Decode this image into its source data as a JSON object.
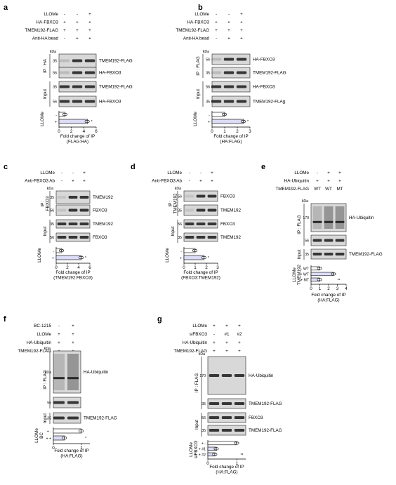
{
  "colors": {
    "bar_control": "#ffffff",
    "bar_llome": "#dcdcf7",
    "blot_bg": "#d8d8d8",
    "band": "#1a1a1a"
  },
  "panels": [
    {
      "letter": "a",
      "conds": [
        [
          "LLOMe",
          "-",
          "-",
          "+"
        ],
        [
          "HA-FBXO3",
          "+",
          "+",
          "+"
        ],
        [
          "TMEM192-FLAG",
          "+",
          "+",
          "+"
        ],
        [
          "Anti-HA bead",
          "-",
          "+",
          "+"
        ]
      ],
      "sections": [
        [
          "IP : HA"
        ],
        [
          "Input"
        ]
      ],
      "blots": [
        [
          "35",
          "TMEM192-FLAG"
        ],
        [
          "56",
          "HA-FBXO3"
        ],
        [
          "35",
          "TMEM192-FLAG"
        ],
        [
          "56",
          "HA-FBXO3"
        ]
      ],
      "kda": "kDa",
      "chart_title": "LLOMe",
      "chart_rows": [
        "-",
        "+"
      ],
      "ticks": [
        "0",
        "2",
        "4",
        "6"
      ],
      "sig": "*",
      "xlabel": [
        "Fold change of IP",
        "(FLAG:HA)"
      ]
    },
    {
      "letter": "b",
      "conds": [
        [
          "LLOMe",
          "-",
          "-",
          "+"
        ],
        [
          "HA-FBXO3",
          "+",
          "+",
          "+"
        ],
        [
          "TMEM192-FLAG",
          "+",
          "+",
          "+"
        ],
        [
          "Anti-HA bead",
          "-",
          "+",
          "+"
        ]
      ],
      "sections": [
        [
          "IP : FLAG"
        ],
        [
          "Input"
        ]
      ],
      "blots": [
        [
          "56",
          "HA-FBXO3"
        ],
        [
          "35",
          "TMEM192-FLAG"
        ],
        [
          "56",
          "HA-FBXO3"
        ],
        [
          "35",
          "TMEM192-FLAg"
        ]
      ],
      "kda": "kDa",
      "chart_title": "LLOMe",
      "chart_rows": [
        "-",
        "+"
      ],
      "ticks": [
        "0",
        "1",
        "2",
        "3"
      ],
      "sig": "*",
      "xlabel": [
        "Fold change of IP",
        "(HA:FLAG)"
      ]
    },
    {
      "letter": "c",
      "conds": [
        [
          "LLOMe",
          "-",
          "-",
          "+"
        ],
        [
          "Anti-FBXO3 Ab",
          "-",
          "+",
          "+"
        ]
      ],
      "sections": [
        [
          "IP :",
          "FBXO3"
        ],
        [
          "Input"
        ]
      ],
      "blots": [
        [
          "35",
          "TMEM192"
        ],
        [
          "56",
          "FBXO3"
        ],
        [
          "35",
          "TMEM192"
        ],
        [
          "56",
          "FBXO3"
        ]
      ],
      "kda": "kDa",
      "chart_title": "LLOMe",
      "chart_rows": [
        "-",
        "+"
      ],
      "ticks": [
        "0",
        "2",
        "4",
        "6"
      ],
      "sig": "*",
      "xlabel": [
        "Fold change of IP",
        "(TMEM192:FBXO3)"
      ]
    },
    {
      "letter": "d",
      "conds": [
        [
          "LLOMe",
          "-",
          "-",
          "+"
        ],
        [
          "Anti-FBXO3 Ab",
          "-",
          "+",
          "+"
        ]
      ],
      "sections": [
        [
          "IP :",
          "TMEM192"
        ],
        [
          "Input"
        ]
      ],
      "blots": [
        [
          "56",
          "FBXO3"
        ],
        [
          "35",
          "TMEM192"
        ],
        [
          "56",
          "FBXO3"
        ],
        [
          "35",
          "TMEM192"
        ]
      ],
      "kda": "kDa",
      "chart_title": "LLOMe",
      "chart_rows": [
        "-",
        "+"
      ],
      "ticks": [
        "0",
        "1",
        "2",
        "3"
      ],
      "sig": "*",
      "xlabel": [
        "Fold change of IP",
        "(FBXO3:TMEM192)"
      ]
    },
    {
      "letter": "e",
      "conds": [
        [
          "LLOMe",
          "-",
          "+",
          "+"
        ],
        [
          "HA-Ubiquitin",
          "+",
          "+",
          "+"
        ],
        [
          "TMEM192-FLAG",
          "WT",
          "WT",
          "MT"
        ]
      ],
      "sections": [
        [
          "IP : FLAG"
        ],
        [
          "Input"
        ]
      ],
      "blots": [
        [
          "170",
          "HA-Ubiquitin"
        ],
        [
          "56",
          ""
        ],
        [
          "35",
          "TMEM192-FLAG"
        ],
        [
          "35",
          "TMEM192-FLAG"
        ]
      ],
      "kda": "kDa",
      "chart_title": "LLOMe",
      "chart_sub": "TMEM192",
      "chart_rows": [
        "-  WT",
        "+  WT",
        "+  MT"
      ],
      "ticks": [
        "0",
        "1",
        "2",
        "3",
        "4"
      ],
      "sig": "**",
      "xlabel": [
        "Fold change of IP",
        "(HA:FLAG)"
      ]
    },
    {
      "letter": "f",
      "conds": [
        [
          "BC-1215",
          "-",
          "+"
        ],
        [
          "LLOMe",
          "+",
          "+"
        ],
        [
          "HA-Ubiquitin",
          "+",
          "+"
        ],
        [
          "TMEM192-FLAG",
          "+",
          "+"
        ]
      ],
      "sections": [
        [
          "IP : FLAG"
        ],
        [
          "Input"
        ]
      ],
      "blots": [
        [
          "kDa",
          "HA-Ubiquitin"
        ],
        [
          "56",
          ""
        ],
        [
          "35",
          "TMEM192-FLAG"
        ],
        [
          "35",
          "TMEM192-FLAG"
        ]
      ],
      "kda": "kDa",
      "chart_title": "LLOMe",
      "chart_sub": "BC",
      "chart_rows": [
        "+  -",
        "+  +"
      ],
      "ticks": [
        "0",
        "1"
      ],
      "sig": "*",
      "xlabel": [
        "Fold  change of  IP",
        "(HA:FLAG)"
      ]
    },
    {
      "letter": "g",
      "conds": [
        [
          "LLOMe",
          "+",
          "+",
          "+"
        ],
        [
          "siFBXO3",
          "-",
          "#1",
          "#2"
        ],
        [
          "HA-Ubiquitin",
          "+",
          "+",
          "+"
        ],
        [
          "TMEM192-FLAG",
          "+",
          "+",
          "+"
        ]
      ],
      "sections": [
        [
          "IP : FLAG"
        ],
        [
          "Input"
        ]
      ],
      "blots": [
        [
          "170",
          "HA-Ubiquitin"
        ],
        [
          "35",
          "TMEM192-FLAG"
        ],
        [
          "56",
          "FBXO3"
        ],
        [
          "35",
          "TMEM192-FLAG"
        ]
      ],
      "kda": "kDa",
      "chart_title": "LLOMe",
      "chart_sub": "siFBXO3",
      "chart_rows": [
        "+  -",
        "+  #1",
        "+  #2"
      ],
      "ticks": [
        "0",
        "1"
      ],
      "sig": "**",
      "xlabel": [
        "Fold change of IP",
        "(HA:FLAG)"
      ]
    }
  ],
  "chart_data": [
    {
      "panel": "a",
      "type": "bar",
      "orientation": "horizontal",
      "categories": [
        "-",
        "+"
      ],
      "values": [
        1.0,
        4.6
      ],
      "xlim": [
        0,
        6
      ]
    },
    {
      "panel": "b",
      "type": "bar",
      "orientation": "horizontal",
      "categories": [
        "-",
        "+"
      ],
      "values": [
        1.0,
        2.5
      ],
      "xlim": [
        0,
        3
      ]
    },
    {
      "panel": "c",
      "type": "bar",
      "orientation": "horizontal",
      "categories": [
        "-",
        "+"
      ],
      "values": [
        1.0,
        4.5
      ],
      "xlim": [
        0,
        6
      ]
    },
    {
      "panel": "d",
      "type": "bar",
      "orientation": "horizontal",
      "categories": [
        "-",
        "+"
      ],
      "values": [
        1.0,
        1.8
      ],
      "xlim": [
        0,
        3
      ]
    },
    {
      "panel": "e",
      "type": "bar",
      "orientation": "horizontal",
      "categories": [
        "- WT",
        "+ WT",
        "+ MT"
      ],
      "values": [
        1.0,
        2.6,
        1.0
      ],
      "xlim": [
        0,
        4
      ]
    },
    {
      "panel": "f",
      "type": "bar",
      "orientation": "horizontal",
      "categories": [
        "+ -",
        "+ +"
      ],
      "values": [
        1.0,
        0.4
      ],
      "xlim": [
        0,
        1.3
      ]
    },
    {
      "panel": "g",
      "type": "bar",
      "orientation": "horizontal",
      "categories": [
        "+ -",
        "+ #1",
        "+ #2"
      ],
      "values": [
        1.0,
        0.3,
        0.25
      ],
      "xlim": [
        0,
        1.3
      ]
    }
  ]
}
